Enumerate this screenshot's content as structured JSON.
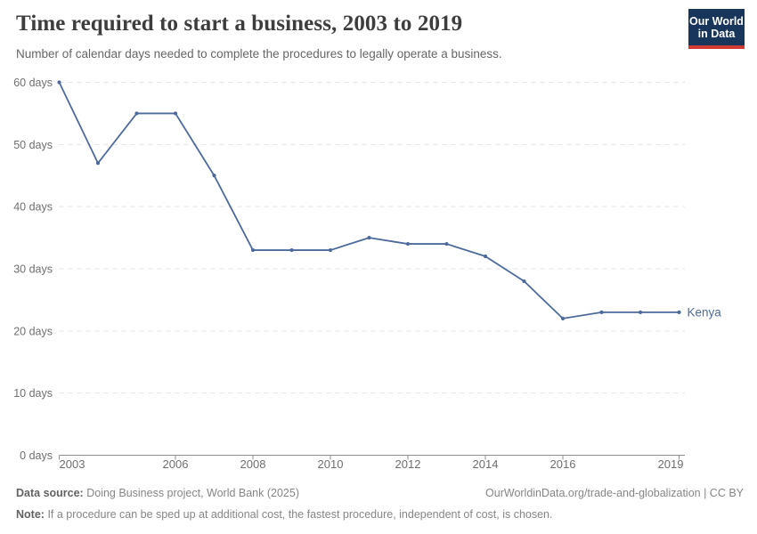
{
  "header": {
    "title": "Time required to start a business, 2003 to 2019",
    "subtitle": "Number of calendar days needed to complete the procedures to legally operate a business.",
    "logo_line1": "Our World",
    "logo_line2": "in Data",
    "logo_bg_color": "#18355c",
    "logo_accent_color": "#d23a34"
  },
  "chart_data": {
    "type": "line",
    "title": "Time required to start a business, 2003 to 2019",
    "x": [
      2003,
      2004,
      2005,
      2006,
      2007,
      2008,
      2009,
      2010,
      2011,
      2012,
      2013,
      2014,
      2015,
      2016,
      2017,
      2018,
      2019
    ],
    "series": [
      {
        "name": "Kenya",
        "values": [
          60,
          47,
          55,
          55,
          45,
          33,
          33,
          33,
          35,
          34,
          34,
          32,
          28,
          22,
          23,
          23,
          23
        ],
        "color": "#4c6a9c"
      }
    ],
    "xlabel": "",
    "ylabel": "",
    "ylim": [
      0,
      60
    ],
    "yticks": [
      0,
      10,
      20,
      30,
      40,
      50,
      60
    ],
    "ytick_suffix": " days",
    "xticks": [
      2003,
      2006,
      2008,
      2010,
      2012,
      2014,
      2016,
      2019
    ],
    "legend_position": "end-of-line",
    "grid": "horizontal-dashed",
    "grid_color": "#e2e2e2",
    "axis_color": "#8f8f8f",
    "tick_label_color": "#6f6f6f"
  },
  "footer": {
    "source_label": "Data source:",
    "source_text": "Doing Business project, World Bank (2025)",
    "link_text": "OurWorldinData.org/trade-and-globalization | CC BY",
    "note_label": "Note:",
    "note_text": "If a procedure can be sped up at additional cost, the fastest procedure, independent of cost, is chosen."
  }
}
